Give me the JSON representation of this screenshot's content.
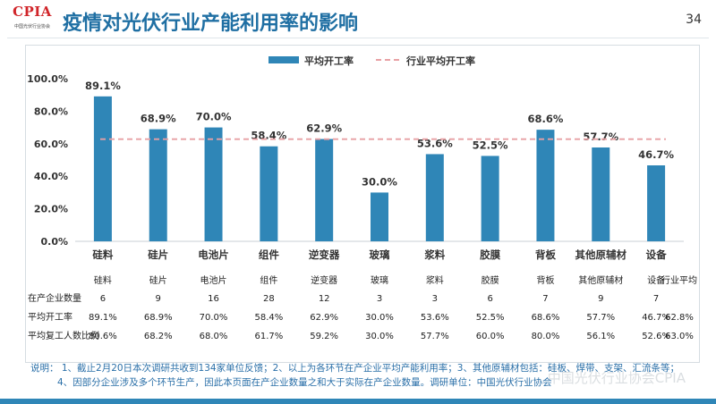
{
  "header": {
    "logo_text": "CPIA",
    "logo_sub": "中国光伏行业协会",
    "title": "疫情对光伏行业产能利用率的影响",
    "page_number": "34"
  },
  "chart_data": {
    "type": "bar",
    "legend": [
      "平均开工率",
      "行业平均开工率"
    ],
    "legend_position": "top-center",
    "categories": [
      "硅料",
      "硅片",
      "电池片",
      "组件",
      "逆变器",
      "玻璃",
      "浆料",
      "胶膜",
      "背板",
      "其他原辅材",
      "设备"
    ],
    "values": [
      89.1,
      68.9,
      70.0,
      58.4,
      62.9,
      30.0,
      53.6,
      52.5,
      68.6,
      57.7,
      46.7
    ],
    "value_labels": [
      "89.1%",
      "68.9%",
      "70.0%",
      "58.4%",
      "62.9%",
      "30.0%",
      "53.6%",
      "52.5%",
      "68.6%",
      "57.7%",
      "46.7%"
    ],
    "reference_line": 62.8,
    "ylim": [
      0,
      100
    ],
    "yticks": [
      "0.0%",
      "20.0%",
      "40.0%",
      "60.0%",
      "80.0%",
      "100.0%"
    ],
    "bar_color": "#2f86b7",
    "ref_color": "#e8a0a4",
    "grid": false
  },
  "table": {
    "columns": [
      "",
      "硅料",
      "硅片",
      "电池片",
      "组件",
      "逆变器",
      "玻璃",
      "浆料",
      "胶膜",
      "背板",
      "其他原辅材",
      "设备",
      "行业平均"
    ],
    "rows": [
      {
        "label": "在产企业数量",
        "cells": [
          "6",
          "9",
          "16",
          "28",
          "12",
          "3",
          "3",
          "6",
          "7",
          "9",
          "7",
          ""
        ]
      },
      {
        "label": "平均开工率",
        "cells": [
          "89.1%",
          "68.9%",
          "70.0%",
          "58.4%",
          "62.9%",
          "30.0%",
          "53.6%",
          "52.5%",
          "68.6%",
          "57.7%",
          "46.7%",
          "62.8%"
        ]
      },
      {
        "label": "平均复工人数比例",
        "cells": [
          "80.6%",
          "68.2%",
          "68.0%",
          "61.7%",
          "59.2%",
          "30.0%",
          "57.7%",
          "60.0%",
          "80.0%",
          "56.1%",
          "52.6%",
          "63.0%"
        ]
      }
    ]
  },
  "notes": {
    "line1": "说明：  1、截止2月20日本次调研共收到134家单位反馈；2、以上为各环节在产企业平均产能利用率；3、其他原辅材包括：硅板、焊带、支架、汇流条等；",
    "line2": "4、因部分企业涉及多个环节生产，因此本页面在产企业数量之和大于实际在产企业数量。调研单位：中国光伏行业协会"
  },
  "watermark": "中国光伏行业协会CPIA"
}
